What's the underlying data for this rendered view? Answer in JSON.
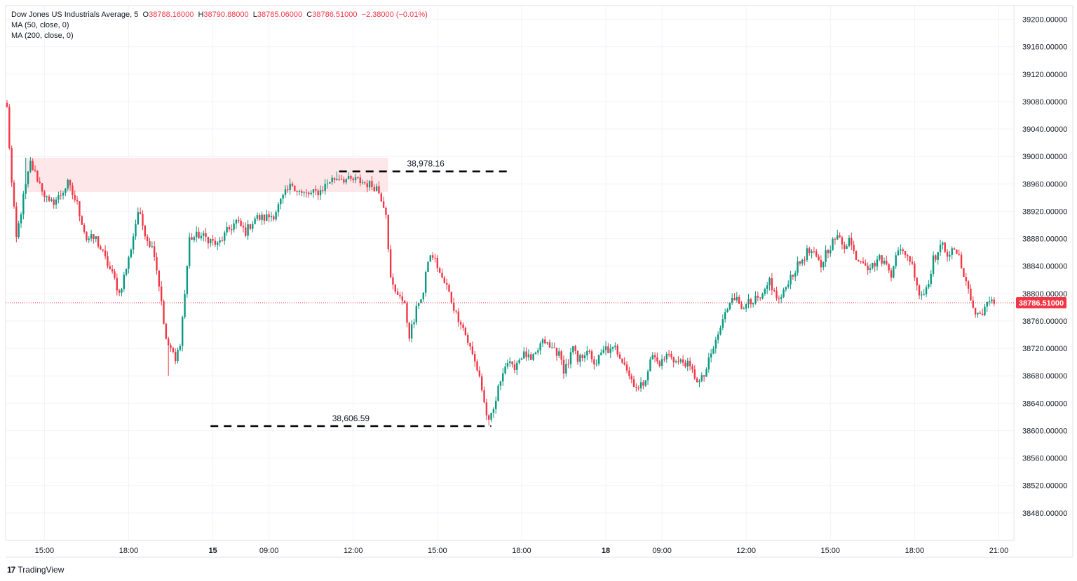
{
  "legend": {
    "symbol": "Dow Jones US Industrials Average",
    "interval": "5",
    "open_label": "O",
    "open": "38788.16000",
    "high_label": "H",
    "high": "38790.88000",
    "low_label": "L",
    "low": "38785.06000",
    "close_label": "C",
    "close": "38786.51000",
    "change": "−2.38000 (−0.01%)",
    "ma50": "MA (50, close, 0)",
    "ma200": "MA (200, close, 0)"
  },
  "brand": {
    "name": "TradingView",
    "logo_text": "17"
  },
  "colors": {
    "up": "#089981",
    "down": "#f23645",
    "zone": "#fde7e9",
    "last_price": "#f23645"
  },
  "chart_data": {
    "type": "candlestick",
    "title": "",
    "ylim": [
      38440,
      39220
    ],
    "yticks": [
      "39200.00000",
      "39160.00000",
      "39120.00000",
      "39080.00000",
      "39040.00000",
      "39000.00000",
      "38960.00000",
      "38920.00000",
      "38880.00000",
      "38840.00000",
      "38800.00000",
      "38760.00000",
      "38720.00000",
      "38680.00000",
      "38640.00000",
      "38600.00000",
      "38560.00000",
      "38520.00000",
      "38480.00000"
    ],
    "xticks": [
      {
        "label": "15:00",
        "bar": 16
      },
      {
        "label": "18:00",
        "bar": 52
      },
      {
        "label": "15",
        "bar": 88,
        "bold": true
      },
      {
        "label": "09:00",
        "bar": 112
      },
      {
        "label": "12:00",
        "bar": 148
      },
      {
        "label": "15:00",
        "bar": 184
      },
      {
        "label": "18:00",
        "bar": 220
      },
      {
        "label": "18",
        "bar": 256,
        "bold": true
      },
      {
        "label": "09:00",
        "bar": 280
      },
      {
        "label": "12:00",
        "bar": 316
      },
      {
        "label": "15:00",
        "bar": 352
      },
      {
        "label": "18:00",
        "bar": 388
      },
      {
        "label": "21:00",
        "bar": 424
      }
    ],
    "waypoints": [
      [
        0,
        39070
      ],
      [
        2,
        38960
      ],
      [
        4,
        38880
      ],
      [
        7,
        38940
      ],
      [
        10,
        38990
      ],
      [
        14,
        38960
      ],
      [
        18,
        38930
      ],
      [
        22,
        38940
      ],
      [
        26,
        38960
      ],
      [
        30,
        38930
      ],
      [
        34,
        38880
      ],
      [
        38,
        38880
      ],
      [
        42,
        38850
      ],
      [
        46,
        38820
      ],
      [
        48,
        38800
      ],
      [
        52,
        38850
      ],
      [
        56,
        38920
      ],
      [
        60,
        38880
      ],
      [
        63,
        38860
      ],
      [
        66,
        38790
      ],
      [
        68,
        38730
      ],
      [
        70,
        38720
      ],
      [
        72,
        38700
      ],
      [
        74,
        38730
      ],
      [
        76,
        38800
      ],
      [
        78,
        38880
      ],
      [
        82,
        38885
      ],
      [
        86,
        38880
      ],
      [
        90,
        38870
      ],
      [
        94,
        38890
      ],
      [
        98,
        38905
      ],
      [
        102,
        38890
      ],
      [
        106,
        38910
      ],
      [
        110,
        38910
      ],
      [
        114,
        38915
      ],
      [
        118,
        38940
      ],
      [
        122,
        38960
      ],
      [
        126,
        38945
      ],
      [
        130,
        38945
      ],
      [
        134,
        38950
      ],
      [
        138,
        38965
      ],
      [
        142,
        38970
      ],
      [
        146,
        38965
      ],
      [
        150,
        38965
      ],
      [
        154,
        38960
      ],
      [
        158,
        38955
      ],
      [
        160,
        38940
      ],
      [
        162,
        38920
      ],
      [
        164,
        38820
      ],
      [
        166,
        38800
      ],
      [
        168,
        38800
      ],
      [
        170,
        38780
      ],
      [
        172,
        38740
      ],
      [
        174,
        38760
      ],
      [
        176,
        38790
      ],
      [
        178,
        38800
      ],
      [
        180,
        38850
      ],
      [
        182,
        38855
      ],
      [
        184,
        38840
      ],
      [
        186,
        38820
      ],
      [
        188,
        38810
      ],
      [
        190,
        38790
      ],
      [
        192,
        38770
      ],
      [
        194,
        38760
      ],
      [
        196,
        38740
      ],
      [
        198,
        38720
      ],
      [
        200,
        38700
      ],
      [
        202,
        38680
      ],
      [
        204,
        38640
      ],
      [
        206,
        38610
      ],
      [
        208,
        38630
      ],
      [
        210,
        38660
      ],
      [
        212,
        38690
      ],
      [
        214,
        38700
      ],
      [
        216,
        38690
      ],
      [
        218,
        38700
      ],
      [
        220,
        38710
      ],
      [
        222,
        38710
      ],
      [
        224,
        38700
      ],
      [
        226,
        38710
      ],
      [
        228,
        38725
      ],
      [
        230,
        38730
      ],
      [
        232,
        38720
      ],
      [
        234,
        38720
      ],
      [
        236,
        38710
      ],
      [
        238,
        38690
      ],
      [
        240,
        38700
      ],
      [
        242,
        38720
      ],
      [
        244,
        38700
      ],
      [
        246,
        38710
      ],
      [
        248,
        38720
      ],
      [
        250,
        38700
      ],
      [
        252,
        38700
      ],
      [
        254,
        38710
      ],
      [
        256,
        38720
      ],
      [
        258,
        38715
      ],
      [
        260,
        38720
      ],
      [
        262,
        38710
      ],
      [
        264,
        38700
      ],
      [
        266,
        38680
      ],
      [
        268,
        38670
      ],
      [
        270,
        38660
      ],
      [
        272,
        38670
      ],
      [
        274,
        38690
      ],
      [
        276,
        38710
      ],
      [
        278,
        38700
      ],
      [
        280,
        38700
      ],
      [
        282,
        38710
      ],
      [
        284,
        38710
      ],
      [
        286,
        38700
      ],
      [
        288,
        38700
      ],
      [
        290,
        38700
      ],
      [
        292,
        38690
      ],
      [
        294,
        38680
      ],
      [
        296,
        38670
      ],
      [
        298,
        38680
      ],
      [
        300,
        38700
      ],
      [
        302,
        38720
      ],
      [
        304,
        38740
      ],
      [
        306,
        38760
      ],
      [
        308,
        38780
      ],
      [
        310,
        38800
      ],
      [
        312,
        38790
      ],
      [
        314,
        38780
      ],
      [
        316,
        38790
      ],
      [
        318,
        38780
      ],
      [
        320,
        38790
      ],
      [
        322,
        38790
      ],
      [
        324,
        38800
      ],
      [
        326,
        38820
      ],
      [
        328,
        38800
      ],
      [
        330,
        38790
      ],
      [
        332,
        38800
      ],
      [
        334,
        38820
      ],
      [
        336,
        38830
      ],
      [
        338,
        38840
      ],
      [
        340,
        38850
      ],
      [
        342,
        38860
      ],
      [
        344,
        38860
      ],
      [
        346,
        38850
      ],
      [
        348,
        38840
      ],
      [
        350,
        38860
      ],
      [
        352,
        38870
      ],
      [
        354,
        38880
      ],
      [
        356,
        38880
      ],
      [
        358,
        38870
      ],
      [
        360,
        38880
      ],
      [
        362,
        38860
      ],
      [
        364,
        38850
      ],
      [
        366,
        38850
      ],
      [
        368,
        38840
      ],
      [
        370,
        38840
      ],
      [
        372,
        38850
      ],
      [
        374,
        38850
      ],
      [
        376,
        38840
      ],
      [
        378,
        38830
      ],
      [
        380,
        38860
      ],
      [
        382,
        38860
      ],
      [
        384,
        38860
      ],
      [
        386,
        38850
      ],
      [
        388,
        38830
      ],
      [
        390,
        38800
      ],
      [
        392,
        38800
      ],
      [
        394,
        38820
      ],
      [
        396,
        38850
      ],
      [
        398,
        38860
      ],
      [
        400,
        38870
      ],
      [
        402,
        38860
      ],
      [
        404,
        38860
      ],
      [
        406,
        38860
      ],
      [
        408,
        38840
      ],
      [
        410,
        38820
      ],
      [
        412,
        38790
      ],
      [
        414,
        38770
      ],
      [
        416,
        38770
      ],
      [
        418,
        38780
      ],
      [
        420,
        38785
      ],
      [
        422,
        38787
      ]
    ],
    "extremes": [
      {
        "bar": 8,
        "value": 38998
      },
      {
        "bar": 69,
        "value": 38680
      },
      {
        "bar": 141,
        "value": 38978
      },
      {
        "bar": 206,
        "value": 38607
      },
      {
        "bar": 355,
        "value": 38893
      }
    ],
    "last_price": 38786.51,
    "last_price_label": "38786.51000",
    "annotations": [
      {
        "label": "38,978.16",
        "value": 38978.16,
        "bar_from": 142,
        "bar_to": 216
      },
      {
        "label": "38,606.59",
        "value": 38606.59,
        "bar_from": 87,
        "bar_to": 207
      }
    ],
    "zone": {
      "from_bar": 8,
      "to_bar": 163,
      "value_from": 38948,
      "value_to": 38998
    }
  }
}
